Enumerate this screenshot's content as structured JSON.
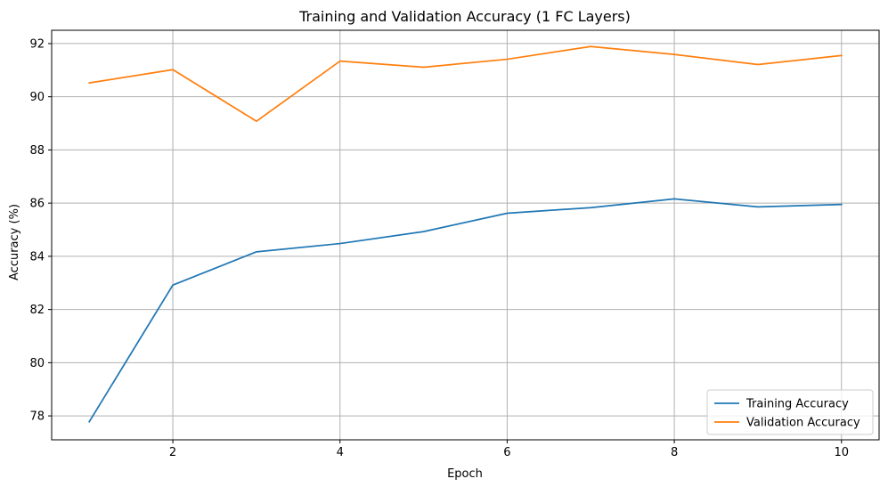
{
  "chart_data": {
    "type": "line",
    "title": "Training and Validation Accuracy (1 FC Layers)",
    "xlabel": "Epoch",
    "ylabel": "Accuracy (%)",
    "x": [
      1,
      2,
      3,
      4,
      5,
      6,
      7,
      8,
      9,
      10
    ],
    "xlim": [
      0.55,
      10.45
    ],
    "ylim": [
      77.1,
      92.5
    ],
    "xticks": [
      2,
      4,
      6,
      8,
      10
    ],
    "yticks": [
      78,
      80,
      82,
      84,
      86,
      88,
      90,
      92
    ],
    "grid": true,
    "legend_position": "lower-right",
    "series": [
      {
        "name": "Training Accuracy",
        "color": "#1f77b4",
        "values": [
          77.78,
          82.92,
          84.17,
          84.48,
          84.93,
          85.62,
          85.83,
          86.16,
          85.86,
          85.95
        ]
      },
      {
        "name": "Validation Accuracy",
        "color": "#ff7f0e",
        "values": [
          90.52,
          91.02,
          89.08,
          91.34,
          91.11,
          91.41,
          91.89,
          91.59,
          91.21,
          91.55
        ]
      }
    ]
  }
}
